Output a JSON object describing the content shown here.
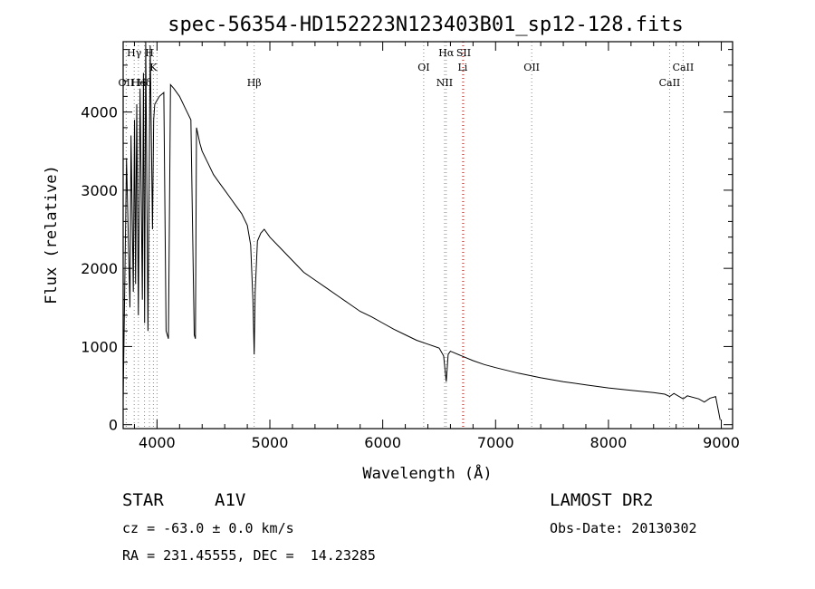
{
  "chart_data": {
    "type": "line",
    "title": "spec-56354-HD152223N123403B01_sp12-128.fits",
    "xlabel": "Wavelength (Å)",
    "ylabel": "Flux (relative)",
    "xlim": [
      3700,
      9100
    ],
    "ylim": [
      -50,
      4900
    ],
    "xticks": [
      4000,
      5000,
      6000,
      7000,
      8000,
      9000
    ],
    "yticks": [
      0,
      1000,
      2000,
      3000,
      4000
    ],
    "grid": false,
    "series": [
      {
        "x": [
          3700,
          3730,
          3760,
          3770,
          3790,
          3800,
          3810,
          3820,
          3835,
          3850,
          3870,
          3880,
          3890,
          3900,
          3920,
          3940,
          3960,
          3970,
          3980,
          4000,
          4020,
          4060,
          4080,
          4101,
          4120,
          4150,
          4200,
          4250,
          4300,
          4330,
          4340,
          4350,
          4380,
          4400,
          4450,
          4500,
          4550,
          4600,
          4650,
          4700,
          4750,
          4800,
          4830,
          4850,
          4861,
          4870,
          4890,
          4920,
          4950,
          5000,
          5100,
          5200,
          5300,
          5400,
          5500,
          5600,
          5700,
          5800,
          5900,
          6000,
          6100,
          6200,
          6300,
          6400,
          6500,
          6540,
          6563,
          6580,
          6600,
          6700,
          6800,
          6900,
          7000,
          7200,
          7400,
          7600,
          7800,
          8000,
          8200,
          8400,
          8500,
          8542,
          8580,
          8662,
          8700,
          8800,
          8850,
          8900,
          8950,
          8990
        ],
        "y": [
          300,
          3400,
          1500,
          3700,
          1700,
          3900,
          1800,
          4100,
          1400,
          4300,
          1600,
          4500,
          1300,
          4900,
          1200,
          4850,
          2500,
          3900,
          4100,
          4150,
          4200,
          4250,
          1200,
          1100,
          4350,
          4300,
          4200,
          4050,
          3900,
          1150,
          1100,
          3800,
          3600,
          3500,
          3350,
          3200,
          3100,
          3000,
          2900,
          2800,
          2700,
          2550,
          2300,
          1600,
          900,
          1700,
          2350,
          2450,
          2500,
          2400,
          2250,
          2100,
          1950,
          1850,
          1750,
          1650,
          1550,
          1450,
          1380,
          1300,
          1220,
          1150,
          1080,
          1030,
          980,
          880,
          550,
          900,
          940,
          880,
          820,
          770,
          730,
          660,
          600,
          550,
          510,
          470,
          440,
          410,
          390,
          360,
          400,
          330,
          370,
          330,
          290,
          340,
          360,
          60
        ]
      }
    ],
    "spectral_lines": [
      {
        "label": "OII",
        "x": 3727,
        "tier": 2,
        "color": "#888888"
      },
      {
        "label": "Hγ",
        "x": 3798,
        "tier": 0,
        "color": "#888888"
      },
      {
        "label": "He",
        "x": 3835,
        "tier": 2,
        "color": "#888888"
      },
      {
        "label": "Hδ",
        "x": 3889,
        "tier": 2,
        "color": "#888888"
      },
      {
        "label": "H",
        "x": 3933,
        "tier": 0,
        "color": "#888888"
      },
      {
        "label": "K",
        "x": 3968,
        "tier": 1,
        "color": "#888888"
      },
      {
        "label": "",
        "x": 4000,
        "tier": 0,
        "color": "#888888"
      },
      {
        "label": "Hβ",
        "x": 4861,
        "tier": 2,
        "color": "#888888"
      },
      {
        "label": "OI",
        "x": 6363,
        "tier": 1,
        "color": "#888888"
      },
      {
        "label": "NII",
        "x": 6548,
        "tier": 2,
        "color": "#888888"
      },
      {
        "label": "Hα",
        "x": 6563,
        "tier": 0,
        "color": "#888888"
      },
      {
        "label": "SII",
        "x": 6717,
        "tier": 0,
        "color": "#cc3333"
      },
      {
        "label": "Li",
        "x": 6708,
        "tier": 1,
        "color": "#cc3333"
      },
      {
        "label": "OII",
        "x": 7320,
        "tier": 1,
        "color": "#888888"
      },
      {
        "label": "CaII",
        "x": 8542,
        "tier": 2,
        "color": "#888888"
      },
      {
        "label": "CaII",
        "x": 8662,
        "tier": 1,
        "color": "#888888"
      }
    ]
  },
  "info": {
    "class_label": "STAR",
    "subclass": "A1V",
    "survey": "LAMOST DR2",
    "cz": "cz = -63.0 ± 0.0 km/s",
    "obs_date": "Obs-Date: 20130302",
    "coords": "RA = 231.45555, DEC =  14.23285"
  }
}
